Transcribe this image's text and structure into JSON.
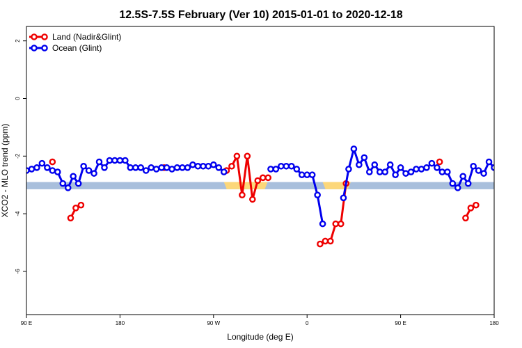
{
  "chart_data": {
    "type": "line",
    "title": "12.5S-7.5S February (Ver 10)   2015-01-01 to 2020-12-18",
    "xlabel": "Longitude (deg E)",
    "ylabel": "XCO2 - MLO trend (ppm)",
    "xlim": [
      90,
      540
    ],
    "ylim": [
      -7.5,
      2.5
    ],
    "x_ticks": [
      {
        "value": 90,
        "label": "90 E"
      },
      {
        "value": 180,
        "label": "180"
      },
      {
        "value": 270,
        "label": "90 W"
      },
      {
        "value": 360,
        "label": "0"
      },
      {
        "value": 450,
        "label": "90 E"
      },
      {
        "value": 540,
        "label": "180"
      }
    ],
    "y_ticks": [
      {
        "value": 2,
        "label": "2"
      },
      {
        "value": 0,
        "label": "0"
      },
      {
        "value": -2,
        "label": "-2"
      },
      {
        "value": -4,
        "label": "-4"
      },
      {
        "value": -6,
        "label": "-6"
      }
    ],
    "band": {
      "low": -3.15,
      "high": -2.9,
      "color": "#a9bfdc",
      "land_color": "#fcd77a",
      "land_segments": [
        [
          280,
          322
        ],
        [
          375,
          402
        ]
      ]
    },
    "legend": {
      "position": "top-left"
    },
    "series": [
      {
        "name": "Land (Nadir&Glint)",
        "color": "#ee0000",
        "segments": [
          [
            [
              115,
              -2.2
            ]
          ],
          [
            [
              132.5,
              -4.15
            ],
            [
              137.5,
              -3.8
            ],
            [
              142.5,
              -3.7
            ]
          ],
          [
            [
              222.5,
              -2.4
            ]
          ],
          [
            [
              282.5,
              -2.5
            ],
            [
              287.5,
              -2.35
            ],
            [
              292.5,
              -2.0
            ],
            [
              297.5,
              -3.35
            ],
            [
              302.5,
              -2.0
            ],
            [
              307.5,
              -3.5
            ],
            [
              312.5,
              -2.85
            ],
            [
              317.5,
              -2.75
            ],
            [
              322.5,
              -2.75
            ]
          ],
          [
            [
              372.5,
              -5.05
            ],
            [
              377.5,
              -4.95
            ],
            [
              382.5,
              -4.95
            ],
            [
              387.5,
              -4.35
            ],
            [
              392.5,
              -4.35
            ],
            [
              397.5,
              -2.95
            ]
          ],
          [
            [
              487.5,
              -2.2
            ]
          ],
          [
            [
              512.5,
              -4.15
            ],
            [
              517.5,
              -3.8
            ],
            [
              522.5,
              -3.7
            ]
          ]
        ]
      },
      {
        "name": "Ocean (Glint)",
        "color": "#0000ee",
        "segments": [
          [
            [
              90,
              -2.5
            ],
            [
              95,
              -2.45
            ],
            [
              100,
              -2.4
            ],
            [
              105,
              -2.25
            ],
            [
              110,
              -2.4
            ],
            [
              115,
              -2.5
            ],
            [
              120,
              -2.55
            ],
            [
              125,
              -2.95
            ],
            [
              130,
              -3.1
            ],
            [
              135,
              -2.7
            ],
            [
              140,
              -2.95
            ],
            [
              145,
              -2.35
            ],
            [
              150,
              -2.5
            ],
            [
              155,
              -2.6
            ],
            [
              160,
              -2.2
            ],
            [
              165,
              -2.4
            ],
            [
              170,
              -2.15
            ],
            [
              175,
              -2.15
            ],
            [
              180,
              -2.15
            ],
            [
              185,
              -2.15
            ],
            [
              190,
              -2.4
            ],
            [
              195,
              -2.4
            ],
            [
              200,
              -2.4
            ],
            [
              205,
              -2.5
            ],
            [
              210,
              -2.4
            ],
            [
              215,
              -2.45
            ],
            [
              220,
              -2.4
            ],
            [
              225,
              -2.4
            ],
            [
              230,
              -2.45
            ],
            [
              235,
              -2.4
            ],
            [
              240,
              -2.4
            ],
            [
              245,
              -2.4
            ],
            [
              250,
              -2.3
            ],
            [
              255,
              -2.35
            ],
            [
              260,
              -2.35
            ],
            [
              265,
              -2.35
            ],
            [
              270,
              -2.3
            ],
            [
              275,
              -2.4
            ],
            [
              280,
              -2.55
            ]
          ],
          [
            [
              325,
              -2.45
            ],
            [
              330,
              -2.45
            ],
            [
              335,
              -2.35
            ],
            [
              340,
              -2.35
            ],
            [
              345,
              -2.35
            ],
            [
              350,
              -2.45
            ],
            [
              355,
              -2.65
            ],
            [
              360,
              -2.65
            ],
            [
              365,
              -2.65
            ],
            [
              370,
              -3.35
            ],
            [
              375,
              -4.35
            ]
          ],
          [
            [
              395,
              -3.45
            ],
            [
              400,
              -2.45
            ],
            [
              405,
              -1.75
            ],
            [
              410,
              -2.3
            ],
            [
              415,
              -2.05
            ],
            [
              420,
              -2.55
            ],
            [
              425,
              -2.3
            ],
            [
              430,
              -2.55
            ],
            [
              435,
              -2.55
            ],
            [
              440,
              -2.3
            ],
            [
              445,
              -2.65
            ],
            [
              450,
              -2.4
            ],
            [
              455,
              -2.6
            ],
            [
              460,
              -2.55
            ],
            [
              465,
              -2.45
            ],
            [
              470,
              -2.45
            ],
            [
              475,
              -2.4
            ],
            [
              480,
              -2.25
            ],
            [
              485,
              -2.4
            ],
            [
              490,
              -2.55
            ],
            [
              495,
              -2.55
            ],
            [
              500,
              -2.95
            ],
            [
              505,
              -3.1
            ],
            [
              510,
              -2.7
            ],
            [
              515,
              -2.95
            ],
            [
              520,
              -2.35
            ],
            [
              525,
              -2.5
            ],
            [
              530,
              -2.6
            ],
            [
              535,
              -2.2
            ],
            [
              540,
              -2.4
            ],
            [
              545,
              -2.15
            ],
            [
              550,
              -2.15
            ]
          ]
        ]
      }
    ]
  }
}
